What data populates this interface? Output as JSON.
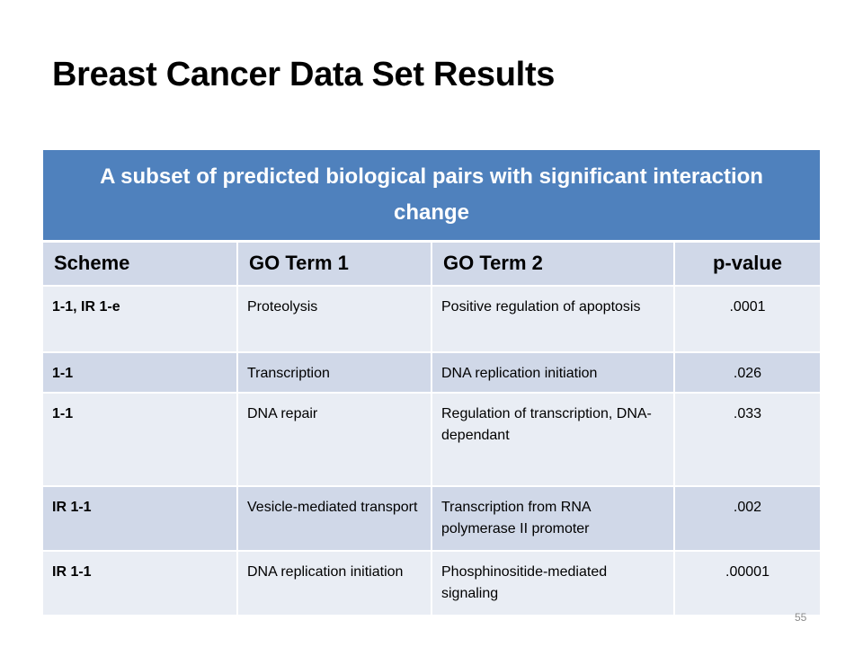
{
  "slide": {
    "title": "Breast Cancer Data Set Results",
    "page_number": "55"
  },
  "table": {
    "caption": "A subset of predicted biological pairs with significant interaction change",
    "headers": {
      "scheme": "Scheme",
      "go_term_1": "GO Term 1",
      "go_term_2": "GO Term 2",
      "p_value": "p-value"
    },
    "rows": [
      {
        "scheme": "1-1, IR 1-e",
        "go_term_1": "Proteolysis",
        "go_term_2": "Positive regulation of apoptosis",
        "p_value": ".0001"
      },
      {
        "scheme": "1-1",
        "go_term_1": "Transcription",
        "go_term_2": "DNA replication initiation",
        "p_value": ".026"
      },
      {
        "scheme": "1-1",
        "go_term_1": "DNA repair",
        "go_term_2": "Regulation of transcription, DNA-dependant",
        "p_value": ".033"
      },
      {
        "scheme": "IR 1-1",
        "go_term_1": "Vesicle-mediated transport",
        "go_term_2": "Transcription from RNA polymerase II promoter",
        "p_value": ".002"
      },
      {
        "scheme": "IR 1-1",
        "go_term_1": "DNA replication initiation",
        "go_term_2": "Phosphinositide-mediated signaling",
        "p_value": ".00001"
      }
    ]
  },
  "colors": {
    "caption_bg": "#4f81bd",
    "header_bg": "#d0d8e8",
    "row_light": "#e9edf4",
    "row_dark": "#d0d8e8"
  }
}
